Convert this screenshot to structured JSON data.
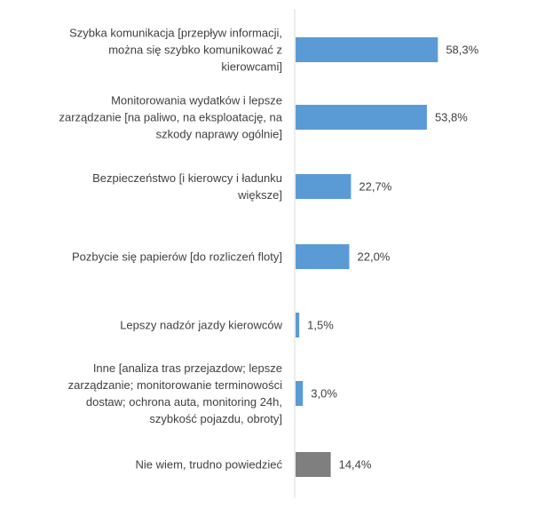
{
  "chart_data": {
    "type": "bar",
    "orientation": "horizontal",
    "categories": [
      "Szybka komunikacja [przepływ informacji, można się szybko komunikować z kierowcami]",
      "Monitorowania wydatków i lepsze zarządzanie [na paliwo, na eksploatację, na szkody naprawy ogólnie]",
      "Bezpieczeństwo [i kierowcy i ładunku większe]",
      "Pozbycie się papierów [do rozliczeń floty]",
      "Lepszy nadzór jazdy kierowców",
      "Inne [analiza tras przejazdow; lepsze zarządzanie; monitorowanie terminowości dostaw; ochrona auta, monitoring 24h, szybkość pojazdu, obroty]",
      "Nie wiem, trudno powiedzieć"
    ],
    "category_lines": [
      [
        "Szybka komunikacja [przepływ informacji,",
        "można się szybko komunikować z",
        "kierowcami]"
      ],
      [
        "Monitorowania wydatków i lepsze",
        "zarządzanie [na paliwo, na eksploatację, na",
        "szkody naprawy ogólnie]"
      ],
      [
        "Bezpieczeństwo [i kierowcy i ładunku",
        "większe]"
      ],
      [
        "Pozbycie się papierów [do rozliczeń floty]"
      ],
      [
        "Lepszy nadzór jazdy kierowców"
      ],
      [
        "Inne [analiza tras przejazdow; lepsze",
        "zarządzanie; monitorowanie terminowości",
        "dostaw; ochrona auta, monitoring 24h,",
        "szybkość pojazdu, obroty]"
      ],
      [
        "Nie wiem, trudno powiedzieć"
      ]
    ],
    "values": [
      58.3,
      53.8,
      22.7,
      22.0,
      1.5,
      3.0,
      14.4
    ],
    "data_labels": [
      "58,3%",
      "53,8%",
      "22,7%",
      "22,0%",
      "1,5%",
      "3,0%",
      "14,4%"
    ],
    "bar_colors": [
      "#5B9BD5",
      "#5B9BD5",
      "#5B9BD5",
      "#5B9BD5",
      "#5B9BD5",
      "#5B9BD5",
      "#7F7F7F"
    ],
    "xlim": [
      0,
      100
    ],
    "grid": false,
    "title": "",
    "xlabel": "",
    "ylabel": ""
  },
  "colors": {
    "bar_primary": "#5B9BD5",
    "bar_neutral": "#7F7F7F",
    "text": "#404040",
    "axis": "#D9D9D9"
  }
}
